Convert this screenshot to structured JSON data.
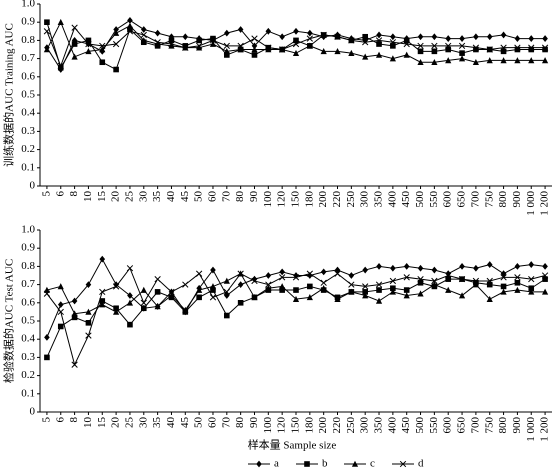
{
  "chart_data": [
    {
      "type": "line",
      "ylabel": "训练数据的AUC Training AUC",
      "categories": [
        "5",
        "6",
        "8",
        "10",
        "15",
        "20",
        "25",
        "30",
        "35",
        "40",
        "45",
        "50",
        "60",
        "70",
        "80",
        "90",
        "100",
        "120",
        "150",
        "180",
        "200",
        "220",
        "250",
        "300",
        "350",
        "400",
        "450",
        "500",
        "550",
        "600",
        "650",
        "700",
        "750",
        "800",
        "900",
        "1 000",
        "1 200"
      ],
      "ylim": [
        0,
        1
      ],
      "yticks": [
        0,
        0.1,
        0.2,
        0.3,
        0.4,
        0.5,
        0.6,
        0.7,
        0.8,
        0.9,
        {
          "value": 1,
          "label": "1.0"
        }
      ],
      "series": [
        {
          "name": "a",
          "color": "#000000",
          "marker": "diamond",
          "values": [
            0.76,
            0.64,
            0.8,
            0.78,
            0.74,
            0.86,
            0.91,
            0.86,
            0.84,
            0.82,
            0.82,
            0.81,
            0.8,
            0.84,
            0.86,
            0.77,
            0.85,
            0.82,
            0.85,
            0.84,
            0.82,
            0.83,
            0.81,
            0.8,
            0.83,
            0.82,
            0.81,
            0.82,
            0.82,
            0.81,
            0.81,
            0.82,
            0.82,
            0.83,
            0.81,
            0.81,
            0.81
          ]
        },
        {
          "name": "b",
          "color": "#000000",
          "marker": "square",
          "values": [
            0.9,
            0.65,
            0.78,
            0.8,
            0.68,
            0.64,
            0.86,
            0.79,
            0.77,
            0.8,
            0.77,
            0.8,
            0.81,
            0.72,
            0.75,
            0.72,
            0.76,
            0.75,
            0.8,
            0.77,
            0.83,
            0.82,
            0.8,
            0.82,
            0.78,
            0.77,
            0.8,
            0.74,
            0.74,
            0.75,
            0.73,
            0.75,
            0.75,
            0.74,
            0.75,
            0.75,
            0.75
          ]
        },
        {
          "name": "c",
          "color": "#000000",
          "marker": "triangle",
          "values": [
            0.75,
            0.9,
            0.71,
            0.74,
            0.75,
            0.84,
            0.88,
            0.8,
            0.78,
            0.77,
            0.76,
            0.76,
            0.78,
            0.74,
            0.75,
            0.75,
            0.75,
            0.75,
            0.73,
            0.77,
            0.74,
            0.74,
            0.73,
            0.71,
            0.72,
            0.7,
            0.72,
            0.68,
            0.68,
            0.69,
            0.7,
            0.68,
            0.69,
            0.69,
            0.69,
            0.69,
            0.69
          ]
        },
        {
          "name": "d",
          "color": "#000000",
          "marker": "x",
          "values": [
            0.85,
            0.66,
            0.87,
            0.78,
            0.77,
            0.78,
            0.85,
            0.83,
            0.79,
            0.78,
            0.76,
            0.77,
            0.8,
            0.77,
            0.77,
            0.81,
            0.76,
            0.75,
            0.78,
            0.81,
            0.83,
            0.82,
            0.8,
            0.79,
            0.8,
            0.79,
            0.78,
            0.77,
            0.77,
            0.77,
            0.77,
            0.76,
            0.75,
            0.76,
            0.76,
            0.76,
            0.76
          ]
        }
      ]
    },
    {
      "type": "line",
      "ylabel": "检验数据的AUC Test AUC",
      "xlabel": "样本量 Sample size",
      "categories": [
        "5",
        "6",
        "8",
        "10",
        "15",
        "20",
        "25",
        "30",
        "35",
        "40",
        "45",
        "50",
        "60",
        "70",
        "80",
        "90",
        "100",
        "120",
        "150",
        "180",
        "200",
        "220",
        "250",
        "300",
        "350",
        "400",
        "450",
        "500",
        "550",
        "600",
        "650",
        "700",
        "750",
        "800",
        "900",
        "1 000",
        "1 200"
      ],
      "ylim": [
        0,
        1
      ],
      "yticks": [
        0,
        0.1,
        0.2,
        0.3,
        0.4,
        0.5,
        0.6,
        0.7,
        0.8,
        0.9,
        {
          "value": 1,
          "label": "1.0"
        }
      ],
      "series": [
        {
          "name": "a",
          "color": "#000000",
          "marker": "diamond",
          "values": [
            0.41,
            0.59,
            0.61,
            0.7,
            0.84,
            0.7,
            0.64,
            0.57,
            0.58,
            0.66,
            0.55,
            0.68,
            0.78,
            0.64,
            0.7,
            0.73,
            0.75,
            0.77,
            0.75,
            0.75,
            0.77,
            0.78,
            0.75,
            0.78,
            0.8,
            0.79,
            0.8,
            0.79,
            0.78,
            0.76,
            0.8,
            0.79,
            0.81,
            0.76,
            0.8,
            0.81,
            0.8
          ]
        },
        {
          "name": "b",
          "color": "#000000",
          "marker": "square",
          "values": [
            0.3,
            0.47,
            0.52,
            0.49,
            0.61,
            0.57,
            0.48,
            0.57,
            0.66,
            0.63,
            0.55,
            0.63,
            0.67,
            0.53,
            0.6,
            0.63,
            0.67,
            0.67,
            0.67,
            0.69,
            0.67,
            0.63,
            0.66,
            0.66,
            0.67,
            0.68,
            0.67,
            0.71,
            0.69,
            0.73,
            0.73,
            0.71,
            0.7,
            0.69,
            0.71,
            0.68,
            0.73
          ]
        },
        {
          "name": "c",
          "color": "#000000",
          "marker": "triangle",
          "values": [
            0.67,
            0.69,
            0.54,
            0.55,
            0.59,
            0.55,
            0.6,
            0.67,
            0.58,
            0.64,
            0.56,
            0.67,
            0.69,
            0.72,
            0.76,
            0.63,
            0.68,
            0.69,
            0.62,
            0.63,
            0.68,
            0.62,
            0.66,
            0.64,
            0.61,
            0.66,
            0.64,
            0.65,
            0.7,
            0.67,
            0.64,
            0.7,
            0.62,
            0.66,
            0.67,
            0.66,
            0.66
          ]
        },
        {
          "name": "d",
          "color": "#000000",
          "marker": "x",
          "values": [
            0.65,
            0.55,
            0.26,
            0.42,
            0.66,
            0.69,
            0.79,
            0.6,
            0.73,
            0.66,
            0.7,
            0.76,
            0.63,
            0.66,
            0.76,
            0.72,
            0.7,
            0.74,
            0.74,
            0.76,
            0.71,
            0.76,
            0.7,
            0.69,
            0.7,
            0.72,
            0.74,
            0.73,
            0.72,
            0.75,
            0.73,
            0.72,
            0.72,
            0.74,
            0.74,
            0.73,
            0.75
          ]
        }
      ]
    }
  ]
}
